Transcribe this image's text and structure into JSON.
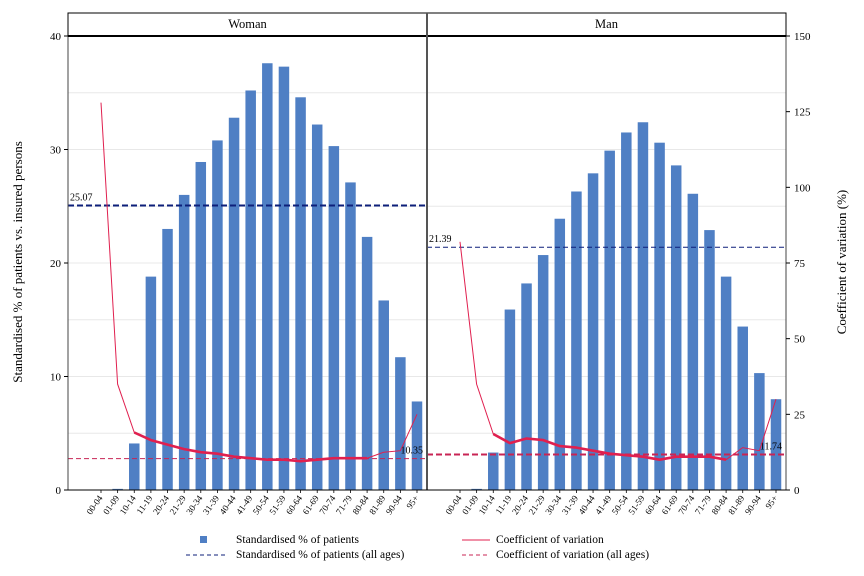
{
  "chart_data": {
    "type": "bar",
    "categories": [
      "00-04",
      "01-09",
      "10-14",
      "11-19",
      "20-24",
      "21-29",
      "30-34",
      "31-39",
      "40-44",
      "41-49",
      "50-54",
      "51-59",
      "60-64",
      "61-69",
      "70-74",
      "71-79",
      "80-84",
      "81-89",
      "90-94",
      "95+"
    ],
    "ylabel": "Standardised % of patients vs. insured persons",
    "y2label": "Coefficient of variation (%)",
    "ylim": [
      0,
      40
    ],
    "yticks": [
      "0",
      "10",
      "20",
      "30",
      "40"
    ],
    "y2lim": [
      0,
      150
    ],
    "y2ticks": [
      "0",
      "25",
      "50",
      "75",
      "100",
      "125",
      "150"
    ],
    "grid": true,
    "legend_position": "bottom",
    "legend": {
      "bars": "Standardised % of patients",
      "cv": "Coefficient of variation",
      "bars_all": "Standardised % of patients (all ages)",
      "cv_all": "Coefficient of variation (all ages)"
    },
    "panels": [
      {
        "title": "Woman",
        "bars": [
          0,
          0.1,
          4.1,
          18.8,
          23.0,
          26.0,
          28.9,
          30.8,
          32.8,
          35.2,
          37.6,
          37.3,
          34.6,
          32.2,
          30.3,
          27.1,
          22.3,
          16.7,
          11.7,
          7.8
        ],
        "cv": [
          128,
          35,
          19,
          16.5,
          15,
          13.5,
          12.5,
          12,
          11,
          10.5,
          10,
          10,
          9.5,
          10,
          10.5,
          10.5,
          10.5,
          12.5,
          13,
          25
        ],
        "bars_all": 25.07,
        "bars_all_label": "25.07",
        "cv_all": 10.35,
        "cv_all_label": "10.35"
      },
      {
        "title": "Man",
        "bars": [
          0,
          0.1,
          3.3,
          15.9,
          18.2,
          20.7,
          23.9,
          26.3,
          27.9,
          29.9,
          31.5,
          32.4,
          30.6,
          28.6,
          26.1,
          22.9,
          18.8,
          14.4,
          10.3,
          8.0
        ],
        "cv": [
          82,
          35,
          18.5,
          15.5,
          17,
          16.5,
          14.5,
          14,
          13,
          12,
          11.5,
          11,
          10,
          11,
          11,
          11,
          10,
          14,
          13,
          30
        ],
        "bars_all": 21.39,
        "bars_all_label": "21.39",
        "cv_all": 11.74,
        "cv_all_label": "11.74"
      }
    ],
    "colors": {
      "bar": "#4f7fc4",
      "cv": "#e0204f",
      "bars_all": "#0d1f7a",
      "cv_all": "#c82454",
      "grid": "#e8e8e8",
      "strip": "#ffffff"
    }
  }
}
